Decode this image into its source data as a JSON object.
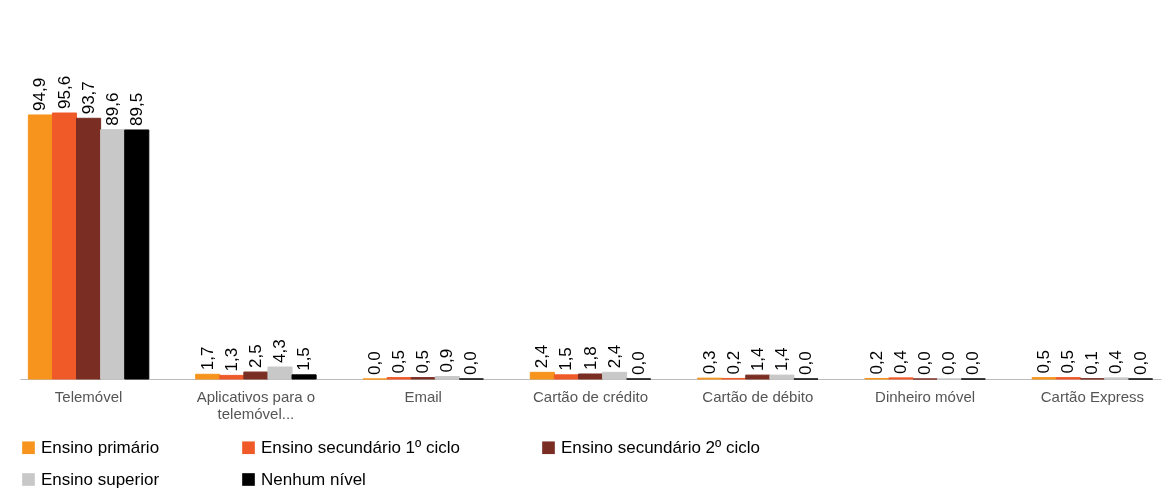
{
  "chart_data": {
    "type": "bar",
    "categories": [
      "Telemóvel",
      "Aplicativos para o telemóvel...",
      "Email",
      "Cartão de crédito",
      "Cartão de débito",
      "Dinheiro móvel",
      "Cartão Express"
    ],
    "series": [
      {
        "name": "Ensino primário",
        "color": "#f7941d",
        "values": [
          94.9,
          1.7,
          0.0,
          2.4,
          0.3,
          0.2,
          0.5
        ],
        "value_labels": [
          "94,9",
          "1,7",
          "0,0",
          "2,4",
          "0,3",
          "0,2",
          "0,5"
        ]
      },
      {
        "name": "Ensino secundário 1º ciclo",
        "color": "#f05a28",
        "values": [
          95.6,
          1.3,
          0.5,
          1.5,
          0.2,
          0.4,
          0.5
        ],
        "value_labels": [
          "95,6",
          "1,3",
          "0,5",
          "1,5",
          "0,2",
          "0,4",
          "0,5"
        ]
      },
      {
        "name": "Ensino secundário 2º ciclo",
        "color": "#7a2e23",
        "values": [
          93.7,
          2.5,
          0.5,
          1.8,
          1.4,
          0.0,
          0.1
        ],
        "value_labels": [
          "93,7",
          "2,5",
          "0,5",
          "1,8",
          "1,4",
          "0,0",
          "0,1"
        ]
      },
      {
        "name": "Ensino superior",
        "color": "#c8c8c8",
        "values": [
          89.6,
          4.3,
          0.9,
          2.4,
          1.4,
          0.0,
          0.4
        ],
        "value_labels": [
          "89,6",
          "4,3",
          "0,9",
          "2,4",
          "1,4",
          "0,0",
          "0,4"
        ]
      },
      {
        "name": "Nenhum nível",
        "color": "#000000",
        "values": [
          89.5,
          1.5,
          0.0,
          0.0,
          0.0,
          0.0,
          0.0
        ],
        "value_labels": [
          "89,5",
          "1,5",
          "0,0",
          "0,0",
          "0,0",
          "0,0",
          "0,0"
        ]
      }
    ],
    "legend": "bottom"
  }
}
